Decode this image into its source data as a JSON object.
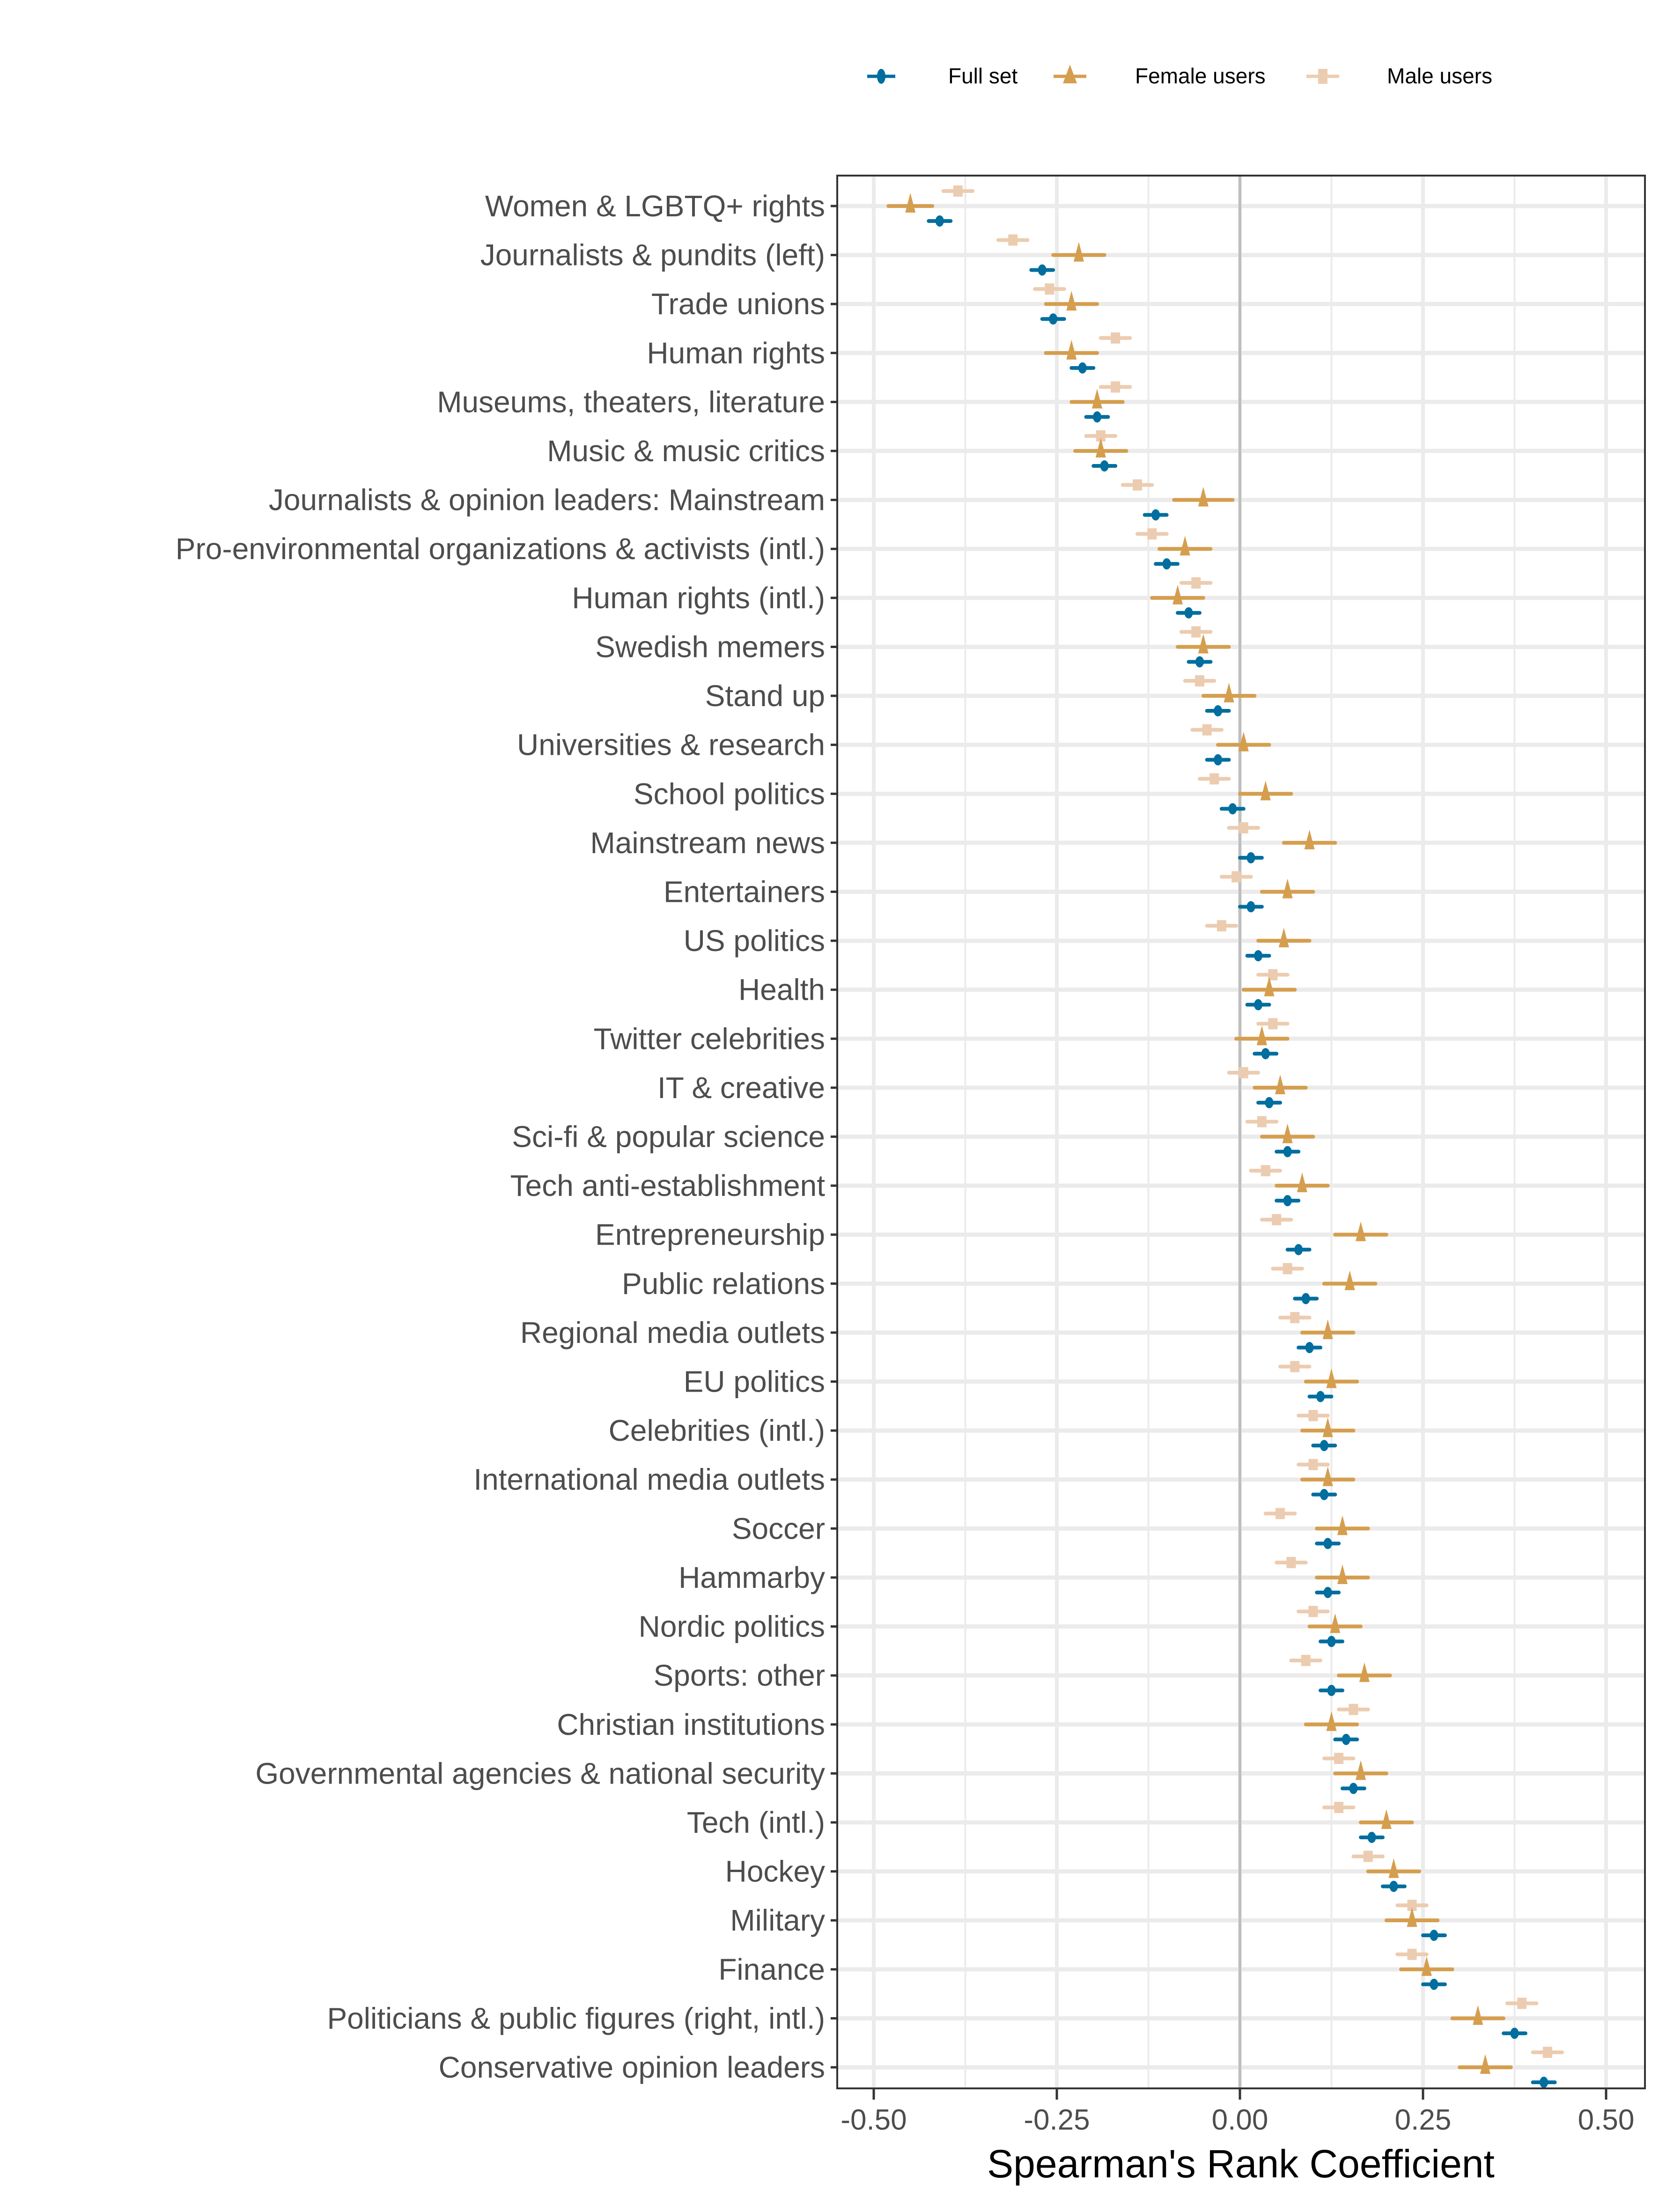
{
  "chart_data": {
    "type": "scatter",
    "subtype": "dot-and-errorbar (horizontal)",
    "title": "",
    "xlabel": "Spearman's Rank Coefficient",
    "ylabel": "",
    "xlim": [
      -0.56,
      0.56
    ],
    "xticks": [
      -0.5,
      -0.25,
      0.0,
      0.25,
      0.5
    ],
    "xtick_labels": [
      "-0.50",
      "-0.25",
      "0.00",
      "0.25",
      "0.50"
    ],
    "grid": true,
    "reference_line": 0.0,
    "legend": {
      "position": "top-center",
      "entries": [
        {
          "name": "Full set",
          "marker": "circle",
          "color": "#006e9e"
        },
        {
          "name": "Female users",
          "marker": "triangle",
          "color": "#d59e4e"
        },
        {
          "name": "Male users",
          "marker": "square",
          "color": "#ecccb0"
        }
      ]
    },
    "categories": [
      "Women & LGBTQ+ rights",
      "Journalists & pundits (left)",
      "Trade unions",
      "Human rights",
      "Museums, theaters, literature",
      "Music & music critics",
      "Journalists & opinion leaders: Mainstream",
      "Pro-environmental organizations & activists (intl.)",
      "Human rights (intl.)",
      "Swedish memers",
      "Stand up",
      "Universities & research",
      "School politics",
      "Mainstream news",
      "Entertainers",
      "US politics",
      "Health",
      "Twitter celebrities",
      "IT & creative",
      "Sci-fi & popular science",
      "Tech anti-establishment",
      "Entrepreneurship",
      "Public relations",
      "Regional media outlets",
      "EU politics",
      "Celebrities (intl.)",
      "International media outlets",
      "Soccer",
      "Hammarby",
      "Nordic politics",
      "Sports: other",
      "Christian institutions",
      "Governmental agencies & national security",
      "Tech (intl.)",
      "Hockey",
      "Military",
      "Finance",
      "Politicians & public figures (right, intl.)",
      "Conservative opinion leaders"
    ],
    "series": [
      {
        "name": "Full set",
        "values": [
          -0.41,
          -0.27,
          -0.255,
          -0.215,
          -0.195,
          -0.185,
          -0.115,
          -0.1,
          -0.07,
          -0.055,
          -0.03,
          -0.03,
          -0.01,
          0.015,
          0.015,
          0.025,
          0.025,
          0.035,
          0.04,
          0.065,
          0.065,
          0.08,
          0.09,
          0.095,
          0.11,
          0.115,
          0.115,
          0.12,
          0.12,
          0.125,
          0.125,
          0.145,
          0.155,
          0.18,
          0.21,
          0.265,
          0.265,
          0.375,
          0.415
        ],
        "ci_halfwidth": [
          0.015,
          0.015,
          0.015,
          0.015,
          0.015,
          0.015,
          0.015,
          0.015,
          0.015,
          0.015,
          0.015,
          0.015,
          0.015,
          0.015,
          0.015,
          0.015,
          0.015,
          0.015,
          0.015,
          0.015,
          0.015,
          0.015,
          0.015,
          0.015,
          0.015,
          0.015,
          0.015,
          0.015,
          0.015,
          0.015,
          0.015,
          0.015,
          0.015,
          0.015,
          0.015,
          0.015,
          0.015,
          0.015,
          0.015
        ]
      },
      {
        "name": "Female users",
        "values": [
          -0.45,
          -0.22,
          -0.23,
          -0.23,
          -0.195,
          -0.19,
          -0.05,
          -0.075,
          -0.085,
          -0.05,
          -0.015,
          0.005,
          0.035,
          0.095,
          0.065,
          0.06,
          0.04,
          0.03,
          0.055,
          0.065,
          0.085,
          0.165,
          0.15,
          0.12,
          0.125,
          0.12,
          0.12,
          0.14,
          0.14,
          0.13,
          0.17,
          0.125,
          0.165,
          0.2,
          0.21,
          0.235,
          0.255,
          0.325,
          0.335
        ],
        "ci_halfwidth": [
          0.03,
          0.035,
          0.035,
          0.035,
          0.035,
          0.035,
          0.04,
          0.035,
          0.035,
          0.035,
          0.035,
          0.035,
          0.035,
          0.035,
          0.035,
          0.035,
          0.035,
          0.035,
          0.035,
          0.035,
          0.035,
          0.035,
          0.035,
          0.035,
          0.035,
          0.035,
          0.035,
          0.035,
          0.035,
          0.035,
          0.035,
          0.035,
          0.035,
          0.035,
          0.035,
          0.035,
          0.035,
          0.035,
          0.035
        ]
      },
      {
        "name": "Male users",
        "values": [
          -0.385,
          -0.31,
          -0.26,
          -0.17,
          -0.17,
          -0.19,
          -0.14,
          -0.12,
          -0.06,
          -0.06,
          -0.055,
          -0.045,
          -0.035,
          0.005,
          -0.005,
          -0.025,
          0.045,
          0.045,
          0.005,
          0.03,
          0.035,
          0.05,
          0.065,
          0.075,
          0.075,
          0.1,
          0.1,
          0.055,
          0.07,
          0.1,
          0.09,
          0.155,
          0.135,
          0.135,
          0.175,
          0.235,
          0.235,
          0.385,
          0.42
        ],
        "ci_halfwidth": [
          0.02,
          0.02,
          0.02,
          0.02,
          0.02,
          0.02,
          0.02,
          0.02,
          0.02,
          0.02,
          0.02,
          0.02,
          0.02,
          0.02,
          0.02,
          0.02,
          0.02,
          0.02,
          0.02,
          0.02,
          0.02,
          0.02,
          0.02,
          0.02,
          0.02,
          0.02,
          0.02,
          0.02,
          0.02,
          0.02,
          0.02,
          0.02,
          0.02,
          0.02,
          0.02,
          0.02,
          0.02,
          0.02,
          0.02
        ]
      }
    ]
  }
}
